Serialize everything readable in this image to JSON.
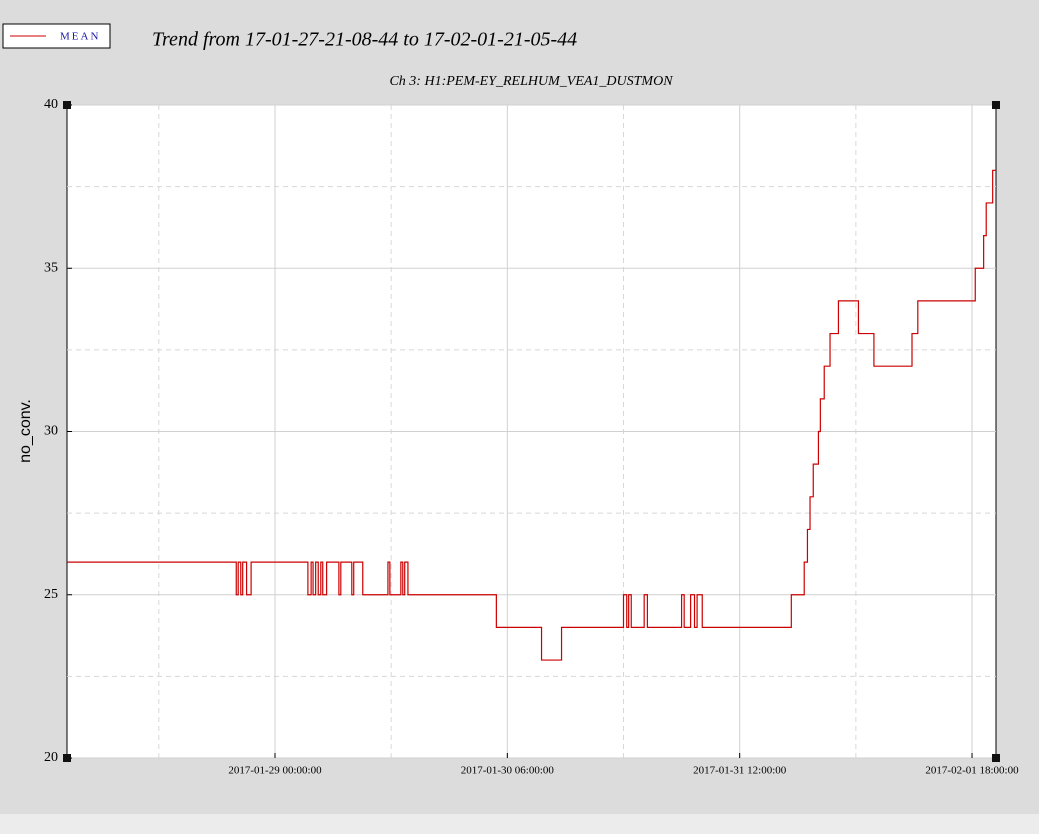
{
  "chart_data": {
    "type": "line",
    "step": "post",
    "title": "Trend from 17-01-27-21-08-44 to 17-02-01-21-05-44",
    "subtitle": "Ch 3: H1:PEM-EY_RELHUM_VEA1_DUSTMON",
    "y_label": "no_conv.",
    "grid": true,
    "legend_position": "top-left",
    "xlim": [
      "2017-01-27 21:08:44",
      "2017-02-01 21:05:44"
    ],
    "xticks": [
      "2017-01-29 00:00:00",
      "2017-01-30 06:00:00",
      "2017-01-31 12:00:00",
      "2017-02-01 18:00:00"
    ],
    "x_minor_ticks": [
      "2017-01-28 09:00:00",
      "2017-01-29 15:00:00",
      "2017-01-30 21:00:00",
      "2017-02-01 03:00:00"
    ],
    "ylim": [
      20,
      40
    ],
    "yticks": [
      20,
      25,
      30,
      35,
      40
    ],
    "y_minor_ticks": [
      22.5,
      27.5,
      32.5,
      37.5
    ],
    "x": [
      "2017-01-27 21:08:44",
      "2017-01-28 19:00:00",
      "2017-01-28 19:15:00",
      "2017-01-28 19:35:00",
      "2017-01-28 19:50:00",
      "2017-01-28 20:20:00",
      "2017-01-28 20:55:00",
      "2017-01-29 04:15:00",
      "2017-01-29 04:40:00",
      "2017-01-29 04:55:00",
      "2017-01-29 05:15:00",
      "2017-01-29 05:35:00",
      "2017-01-29 05:55:00",
      "2017-01-29 06:10:00",
      "2017-01-29 06:40:00",
      "2017-01-29 08:15:00",
      "2017-01-29 08:30:00",
      "2017-01-29 09:55:00",
      "2017-01-29 10:10:00",
      "2017-01-29 11:20:00",
      "2017-01-29 14:35:00",
      "2017-01-29 14:50:00",
      "2017-01-29 16:15:00",
      "2017-01-29 16:30:00",
      "2017-01-29 16:45:00",
      "2017-01-29 17:10:00",
      "2017-01-30 04:35:00",
      "2017-01-30 10:25:00",
      "2017-01-30 13:00:00",
      "2017-01-30 21:00:00",
      "2017-01-30 21:25:00",
      "2017-01-30 21:40:00",
      "2017-01-30 22:00:00",
      "2017-01-30 23:40:00",
      "2017-01-31 00:05:00",
      "2017-01-31 04:30:00",
      "2017-01-31 04:50:00",
      "2017-01-31 05:40:00",
      "2017-01-31 06:10:00",
      "2017-01-31 06:30:00",
      "2017-01-31 07:10:00",
      "2017-01-31 18:40:00",
      "2017-01-31 20:20:00",
      "2017-01-31 20:45:00",
      "2017-01-31 21:05:00",
      "2017-01-31 21:30:00",
      "2017-01-31 22:10:00",
      "2017-01-31 22:25:00",
      "2017-01-31 22:55:00",
      "2017-01-31 23:40:00",
      "2017-02-01 00:45:00",
      "2017-02-01 03:20:00",
      "2017-02-01 05:20:00",
      "2017-02-01 10:15:00",
      "2017-02-01 11:00:00",
      "2017-02-01 18:25:00",
      "2017-02-01 19:30:00",
      "2017-02-01 19:50:00",
      "2017-02-01 20:40:00",
      "2017-02-01 21:05:44"
    ],
    "series": [
      {
        "name": "MEAN",
        "color": "#cc0000",
        "values": [
          26,
          25,
          26,
          25,
          26,
          25,
          26,
          25,
          26,
          25,
          26,
          25,
          26,
          25,
          26,
          25,
          26,
          25,
          26,
          25,
          26,
          25,
          26,
          25,
          26,
          25,
          24,
          23,
          24,
          25,
          24,
          25,
          24,
          25,
          24,
          25,
          24,
          25,
          24,
          25,
          24,
          25,
          26,
          27,
          28,
          29,
          30,
          31,
          32,
          33,
          34,
          33,
          32,
          33,
          34,
          35,
          36,
          37,
          38,
          38
        ]
      }
    ]
  }
}
